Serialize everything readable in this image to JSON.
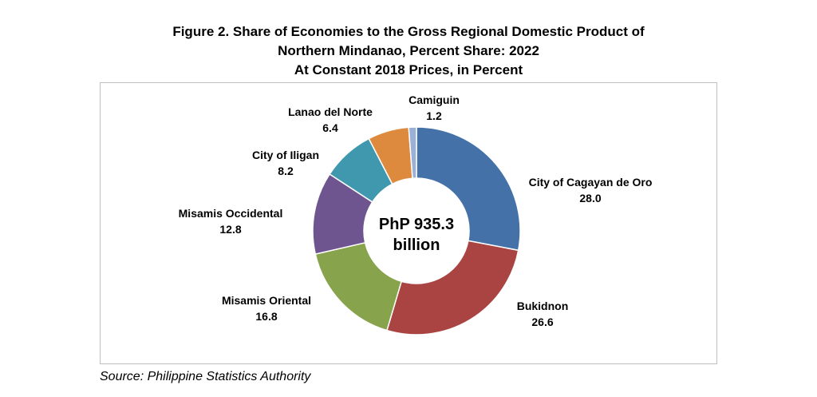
{
  "chart_data": {
    "type": "pie",
    "variant": "donut",
    "title_lines": [
      "Figure 2. Share of Economies to the Gross Regional Domestic Product of",
      "Northern Mindanao, Percent Share: 2022",
      "At Constant 2018 Prices, in Percent"
    ],
    "center_label_lines": [
      "PhP 935.3",
      "billion"
    ],
    "slices": [
      {
        "label": "City of Cagayan de Oro",
        "value": 28.0,
        "value_text": "28.0",
        "color": "#4472a8"
      },
      {
        "label": "Bukidnon",
        "value": 26.6,
        "value_text": "26.6",
        "color": "#a94442"
      },
      {
        "label": "Misamis Oriental",
        "value": 16.8,
        "value_text": "16.8",
        "color": "#87a34c"
      },
      {
        "label": "Misamis Occidental",
        "value": 12.8,
        "value_text": "12.8",
        "color": "#6f5590"
      },
      {
        "label": "City of Iligan",
        "value": 8.2,
        "value_text": "8.2",
        "color": "#3f98ae"
      },
      {
        "label": "Lanao del Norte",
        "value": 6.4,
        "value_text": "6.4",
        "color": "#de8a3e"
      },
      {
        "label": "Camiguin",
        "value": 1.2,
        "value_text": "1.2",
        "color": "#9bb0d6"
      }
    ],
    "legend": "none"
  },
  "source": "Source: Philippine Statistics Authority"
}
